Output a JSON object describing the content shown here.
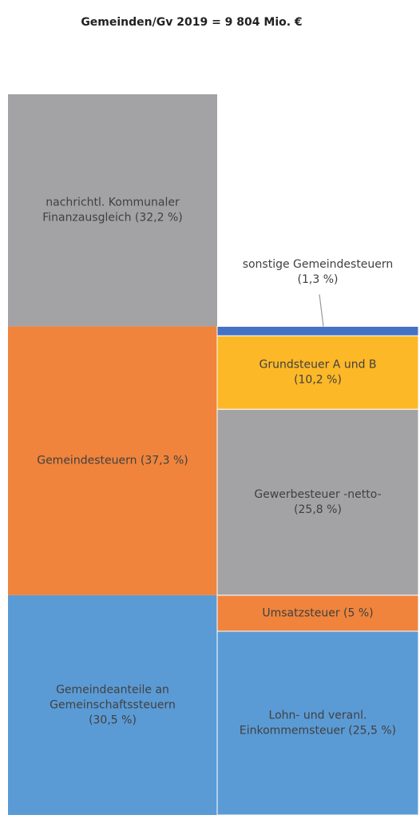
{
  "chart_data": {
    "type": "stacked-column",
    "title": "Gemeinden/Gv 2019 =  9 804 Mio. €",
    "columns": [
      {
        "values": [
          30.5,
          37.3,
          32.2
        ],
        "colors": [
          "#5b9bd5",
          "#f0843c",
          "#a3a3a5"
        ],
        "labels": [
          [
            "Gemeindeanteile an",
            "Gemeinschaftssteuern",
            "(30,5 %)"
          ],
          [
            "Gemeindesteuern (37,3 %)"
          ],
          [
            "nachrichtl. Kommunaler",
            "Finanzausgleich (32,2 %)"
          ]
        ]
      },
      {
        "values": [
          25.5,
          5,
          25.8,
          10.2,
          1.3
        ],
        "colors": [
          "#5b9bd5",
          "#f0843c",
          "#a3a3a5",
          "#fdb827",
          "#4472c4"
        ],
        "labels": [
          [
            "Lohn- und veranl.",
            "Einkommemsteuer (25,5 %)"
          ],
          [
            "Umsatzsteuer (5 %)"
          ],
          [
            "Gewerbesteuer -netto-",
            "(25,8 %)"
          ],
          [
            "Grundsteuer A und B",
            "(10,2 %)"
          ],
          [
            "sonstige Gemeindesteuern",
            "(1,3 %)"
          ]
        ]
      }
    ]
  }
}
